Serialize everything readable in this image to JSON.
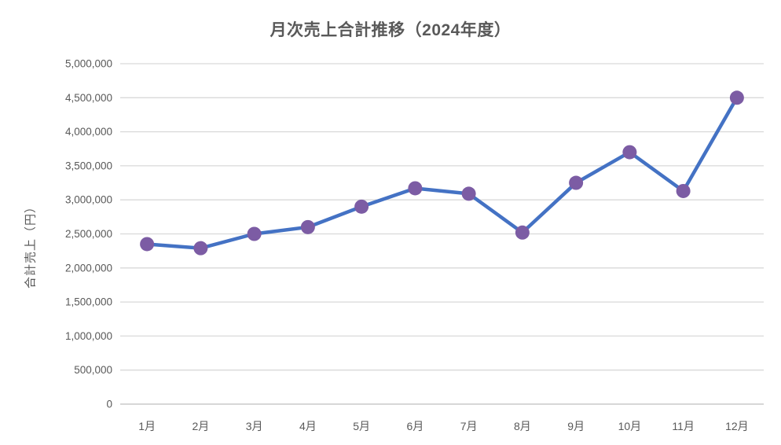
{
  "chart_data": {
    "type": "line",
    "title": "月次売上合計推移（2024年度）",
    "ylabel": "合計売上（円）",
    "xlabel": "",
    "categories": [
      "1月",
      "2月",
      "3月",
      "4月",
      "5月",
      "6月",
      "7月",
      "8月",
      "9月",
      "10月",
      "11月",
      "12月"
    ],
    "values": [
      2350000,
      2290000,
      2500000,
      2600000,
      2900000,
      3170000,
      3090000,
      2520000,
      3250000,
      3700000,
      3130000,
      4500000
    ],
    "ylim": [
      0,
      5000000
    ],
    "ytick_step": 500000,
    "ytick_labels": [
      "0",
      "500,000",
      "1,000,000",
      "1,500,000",
      "2,000,000",
      "2,500,000",
      "3,000,000",
      "3,500,000",
      "4,000,000",
      "4,500,000",
      "5,000,000"
    ],
    "grid": true,
    "legend": "none",
    "colors": {
      "line": "#4472C4",
      "marker": "#7C5CA4",
      "gridline": "#D9D9D9",
      "axis_line": "#BFBFBF",
      "text": "#595959",
      "background": "#FFFFFF"
    }
  }
}
